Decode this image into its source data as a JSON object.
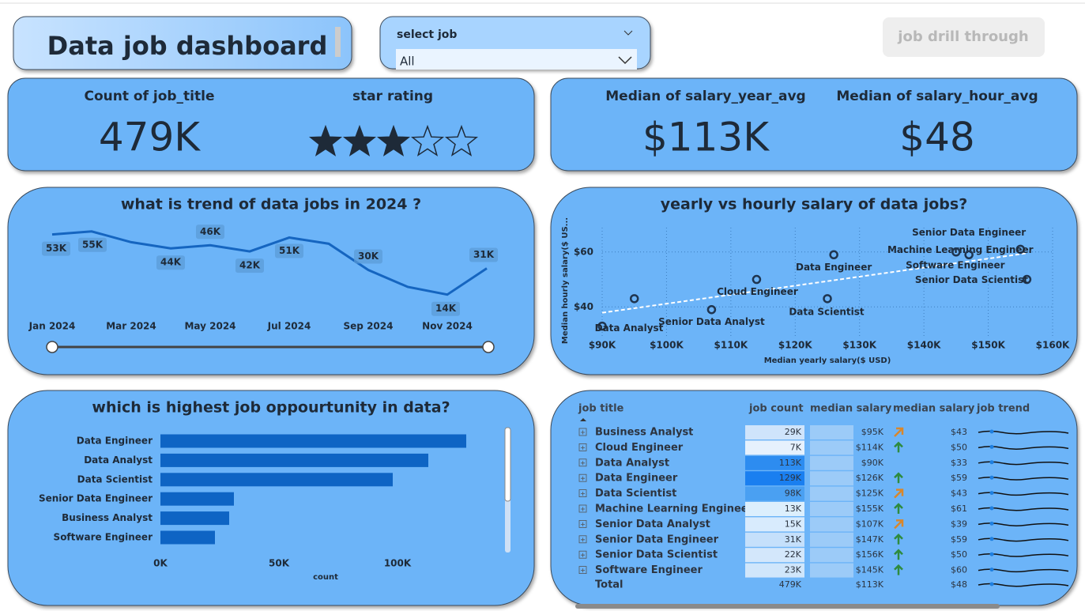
{
  "header": {
    "title": "Data job dashboard",
    "slicer_label": "select job",
    "slicer_value": "All",
    "button": "job drill through"
  },
  "kpis": {
    "count_label": "Count of job_title",
    "count": "479K",
    "star_label": "star rating",
    "stars": 3,
    "stars_max": 5,
    "salary_year_label": "Median of salary_year_avg",
    "salary_year": "$113K",
    "salary_hour_label": "Median of salary_hour_avg",
    "salary_hour": "$48"
  },
  "chart_data": [
    {
      "type": "line",
      "title": "what is trend of data jobs in 2024 ?",
      "categories": [
        "Jan 2024",
        null,
        "Mar 2024",
        null,
        "May 2024",
        null,
        "Jul 2024",
        null,
        "Sep 2024",
        null,
        "Nov 2024",
        null
      ],
      "values": [
        53000,
        55000,
        48000,
        44000,
        46000,
        42000,
        51000,
        47000,
        30000,
        19000,
        14000,
        31000
      ],
      "value_labels": [
        "53K",
        "55K",
        null,
        "44K",
        "46K",
        "42K",
        "51K",
        null,
        "30K",
        null,
        "14K",
        "31K"
      ],
      "color": "#1565c0"
    },
    {
      "type": "scatter",
      "title": "yearly vs hourly salary of data jobs?",
      "xlabel": "Median yearly salary($ USD)",
      "ylabel": "Median hourly salary($ US...",
      "x": [
        95000,
        114000,
        90000,
        126000,
        125000,
        155000,
        107000,
        147000,
        156000,
        145000
      ],
      "values": [
        43,
        50,
        33,
        59,
        43,
        61,
        39,
        59,
        50,
        60
      ],
      "point_labels": [
        null,
        "Cloud Engineer",
        "Data Analyst",
        "Data Engineer",
        "Data Scientist",
        "Machine Learning Engineer",
        "Senior Data Analyst",
        "Senior Data Engineer",
        "Senior Data Scientist",
        "Software Engineer"
      ],
      "xlim": [
        90000,
        160000
      ],
      "xticks": [
        {
          "value": 90000,
          "label": "$90K"
        },
        {
          "value": 100000,
          "label": "$100K"
        },
        {
          "value": 110000,
          "label": "$110K"
        },
        {
          "value": 120000,
          "label": "$120K"
        },
        {
          "value": 130000,
          "label": "$130K"
        },
        {
          "value": 140000,
          "label": "$140K"
        },
        {
          "value": 150000,
          "label": "$150K"
        },
        {
          "value": 160000,
          "label": "$160K"
        }
      ],
      "ylim": [
        30,
        68
      ],
      "yticks": [
        {
          "value": 40,
          "label": "$40"
        },
        {
          "value": 60,
          "label": "$60"
        }
      ],
      "grid": true,
      "trendline": true,
      "color": "#1f3550"
    },
    {
      "type": "hbar",
      "title": "which is highest job oppourtunity in data?",
      "xlabel": "count",
      "categories": [
        "Data Engineer",
        "Data Analyst",
        "Data Scientist",
        "Senior Data Engineer",
        "Business Analyst",
        "Software Engineer"
      ],
      "values": [
        129000,
        113000,
        98000,
        31000,
        29000,
        23000
      ],
      "xlim": [
        0,
        140000
      ],
      "xticks": [
        {
          "value": 0,
          "label": "0K"
        },
        {
          "value": 50000,
          "label": "50K"
        },
        {
          "value": 100000,
          "label": "100K"
        }
      ],
      "color": "#0e64c4"
    }
  ],
  "table": {
    "columns": [
      "job title",
      "job count",
      "median salary",
      "median salary",
      "job trend"
    ],
    "rows": [
      {
        "cells": [
          "Business Analyst",
          "29K",
          "$95K",
          "$43"
        ],
        "shade": "#cfe4fb",
        "icon": "diag"
      },
      {
        "cells": [
          "Cloud Engineer",
          "7K",
          "$114K",
          "$50"
        ],
        "shade": "#e6f1fd",
        "icon": "up"
      },
      {
        "cells": [
          "Data Analyst",
          "113K",
          "$90K",
          "$33"
        ],
        "shade": "#2d8cf0",
        "icon": null
      },
      {
        "cells": [
          "Data Engineer",
          "129K",
          "$126K",
          "$59"
        ],
        "shade": "#1a7ff0",
        "icon": "up"
      },
      {
        "cells": [
          "Data Scientist",
          "98K",
          "$125K",
          "$43"
        ],
        "shade": "#4aa0f2",
        "icon": "diag"
      },
      {
        "cells": [
          "Machine Learning Engineer",
          "13K",
          "$155K",
          "$61"
        ],
        "shade": "#dceffd",
        "icon": "up"
      },
      {
        "cells": [
          "Senior Data Analyst",
          "15K",
          "$107K",
          "$39"
        ],
        "shade": "#d8ebfd",
        "icon": "diag"
      },
      {
        "cells": [
          "Senior Data Engineer",
          "31K",
          "$147K",
          "$59"
        ],
        "shade": "#c5e0fb",
        "icon": "up"
      },
      {
        "cells": [
          "Senior Data Scientist",
          "22K",
          "$156K",
          "$50"
        ],
        "shade": "#d3e7fb",
        "icon": "up"
      },
      {
        "cells": [
          "Software Engineer",
          "23K",
          "$145K",
          "$60"
        ],
        "shade": "#d0e6fb",
        "icon": "up"
      }
    ],
    "total": [
      "Total",
      "479K",
      "$113K",
      "$48"
    ]
  }
}
